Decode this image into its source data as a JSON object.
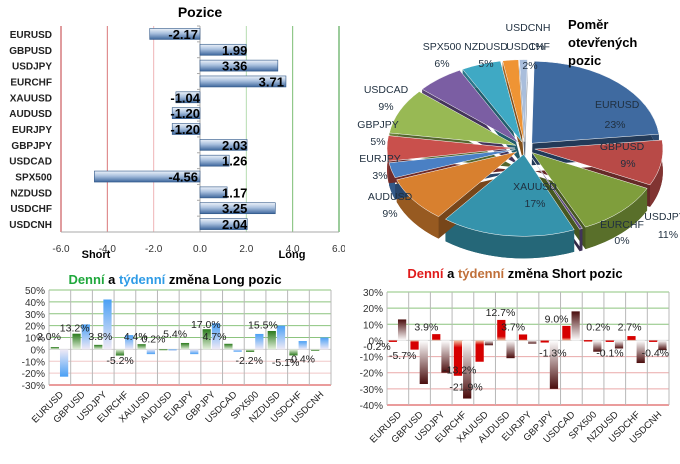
{
  "chart_data": [
    {
      "id": "positions",
      "type": "bar",
      "orientation": "horizontal",
      "title": "Pozice",
      "categories": [
        "EURUSD",
        "GBPUSD",
        "USDJPY",
        "EURCHF",
        "XAUUSD",
        "AUDUSD",
        "EURJPY",
        "GBPJPY",
        "USDCAD",
        "SPX500",
        "NZDUSD",
        "USDCHF",
        "USDCNH"
      ],
      "values": [
        -2.17,
        1.99,
        3.36,
        3.71,
        -1.04,
        -1.2,
        -1.2,
        2.03,
        1.26,
        -4.56,
        1.17,
        3.25,
        2.04
      ],
      "value_labels": [
        "-2.17",
        "1.99",
        "3.36",
        "3.71",
        "-1.04",
        "-1.20",
        "-1.20",
        "2.03",
        "1.26",
        "-4.56",
        "1.17",
        "3.25",
        "2.04"
      ],
      "xlim": [
        -6.0,
        6.0
      ],
      "xticks": [
        -6.0,
        -4.0,
        -2.0,
        0.0,
        2.0,
        4.0,
        6.0
      ],
      "xtick_labels": [
        "-6.0",
        "-4.0",
        "-2.0",
        "0.0",
        "2.0",
        "4.0",
        "6.0"
      ],
      "left_label": "Short",
      "right_label": "Long",
      "grid": true,
      "colors": {
        "bar": "#4f7bb5",
        "bar_light": "#dbe6f4",
        "short_grid": "#d9464b",
        "long_grid": "#3a9a3a"
      }
    },
    {
      "id": "open-positions-ratio",
      "type": "pie",
      "title_lines": [
        "Poměr",
        "otevřených",
        "pozic"
      ],
      "slices": [
        {
          "label": "EURUSD",
          "value": 23,
          "pct": "23%",
          "color": "#3f6aa0"
        },
        {
          "label": "GBPUSD",
          "value": 9,
          "pct": "9%",
          "color": "#b84a47"
        },
        {
          "label": "USDJPY",
          "value": 11,
          "pct": "11%",
          "color": "#7f9e3c"
        },
        {
          "label": "EURCHF",
          "value": 0.4,
          "pct": "0%",
          "color": "#5d4980"
        },
        {
          "label": "XAUUSD",
          "value": 17,
          "pct": "17%",
          "color": "#3593ac"
        },
        {
          "label": "AUDUSD",
          "value": 9,
          "pct": "9%",
          "color": "#d8802f"
        },
        {
          "label": "EURJPY",
          "value": 3,
          "pct": "3%",
          "color": "#4a80c4"
        },
        {
          "label": "GBPJPY",
          "value": 5,
          "pct": "5%",
          "color": "#c9504c"
        },
        {
          "label": "USDCAD",
          "value": 9,
          "pct": "9%",
          "color": "#98b954"
        },
        {
          "label": "SPX500",
          "value": 6,
          "pct": "6%",
          "color": "#7b5ea3"
        },
        {
          "label": "NZDUSD",
          "value": 5,
          "pct": "5%",
          "color": "#3fa9c4"
        },
        {
          "label": "USDCHF",
          "value": 2,
          "pct": "2%",
          "color": "#ef9434"
        },
        {
          "label": "USDCNH",
          "value": 1,
          "pct": "1%",
          "color": "#a9bedc"
        }
      ]
    },
    {
      "id": "long-change",
      "type": "bar",
      "title_parts": [
        {
          "text": "Denní",
          "color": "#1fa83c"
        },
        {
          "text": " a ",
          "color": "#000000"
        },
        {
          "text": "týdenní",
          "color": "#2e9be6"
        },
        {
          "text": " změna Long pozic",
          "color": "#000000"
        }
      ],
      "categories": [
        "EURUSD",
        "GBPUSD",
        "USDJPY",
        "EURCHF",
        "XAUUSD",
        "AUDUSD",
        "EURJPY",
        "GBPJPY",
        "USDCAD",
        "SPX500",
        "NZDUSD",
        "USDCHF",
        "USDCNH"
      ],
      "series": [
        {
          "name": "Denní",
          "color": "#2e7d1f",
          "values": [
            2.0,
            13.2,
            3.8,
            -5.2,
            4.4,
            0.2,
            5.4,
            17.0,
            4.7,
            -2.2,
            15.5,
            -5.1,
            -0.4
          ]
        },
        {
          "name": "Týdenní",
          "color": "#4a9ff2",
          "values": [
            -23,
            21,
            42,
            12,
            -4,
            0,
            -4,
            22,
            -2,
            13,
            20,
            7,
            10
          ]
        }
      ],
      "data_labels": [
        "2.0%",
        "13.2%",
        "3.8%",
        "-5.2%",
        "4.4%",
        "0.2%",
        "5.4%",
        "17.0%",
        "4.7%",
        "-2.2%",
        "15.5%",
        "-5.1%",
        "-0.4%"
      ],
      "ylim": [
        -30,
        50
      ],
      "yticks": [
        -30,
        -20,
        -10,
        0,
        10,
        20,
        30,
        40,
        50
      ],
      "ytick_labels": [
        "-30%",
        "-20%",
        "-10%",
        "0%",
        "10%",
        "20%",
        "30%",
        "40%",
        "50%"
      ],
      "grid": true
    },
    {
      "id": "short-change",
      "type": "bar",
      "title_parts": [
        {
          "text": "Denní",
          "color": "#e01b1b"
        },
        {
          "text": " a ",
          "color": "#000000"
        },
        {
          "text": "týdenní",
          "color": "#c0703a"
        },
        {
          "text": " změna Short pozic",
          "color": "#000000"
        }
      ],
      "categories": [
        "EURUSD",
        "GBPUSD",
        "USDJPY",
        "EURCHF",
        "XAUUSD",
        "AUDUSD",
        "EURJPY",
        "GBPJPY",
        "USDCAD",
        "SPX500",
        "NZDUSD",
        "USDCHF",
        "USDCNH"
      ],
      "series": [
        {
          "name": "Denní",
          "color": "#d40000",
          "values": [
            -0.2,
            -5.7,
            3.9,
            -21.9,
            -13.2,
            12.7,
            3.7,
            -1.3,
            9.0,
            0.2,
            -0.1,
            2.7,
            -0.4
          ]
        },
        {
          "name": "Týdenní",
          "color": "#5a1010",
          "values": [
            13,
            -27,
            -20,
            -36,
            -3,
            -11,
            -2,
            -30,
            18,
            -7,
            -5,
            -14,
            -6
          ]
        }
      ],
      "data_labels": [
        "-0.2%",
        "-5.7%",
        "3.9%",
        "-21.9%",
        "-13.2%",
        "12.7%",
        "3.7%",
        "-1.3%",
        "9.0%",
        "0.2%",
        "-0.1%",
        "2.7%",
        "-0.4%"
      ],
      "ylim": [
        -40,
        30
      ],
      "yticks": [
        -40,
        -30,
        -20,
        -10,
        0,
        10,
        20,
        30
      ],
      "ytick_labels": [
        "-40%",
        "-30%",
        "-20%",
        "-10%",
        "0%",
        "10%",
        "20%",
        "30%"
      ],
      "grid": true
    }
  ]
}
